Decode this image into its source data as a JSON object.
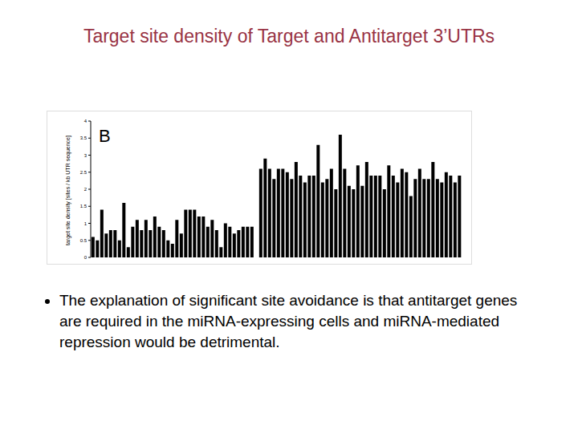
{
  "slide": {
    "title": "Target site density of Target and Antitarget 3’UTRs",
    "bullets": [
      "The explanation of significant site avoidance is that antitarget genes are required in the miRNA-expressing cells and miRNA-mediated repression would be detrimental."
    ]
  },
  "chart_data": {
    "type": "bar",
    "annotations": [
      "B"
    ],
    "y_label": "target site density [sites / kb UTR sequence]",
    "categories": [
      null,
      null,
      null,
      null,
      null,
      null,
      null,
      null,
      null,
      null,
      null,
      null,
      null,
      null,
      null,
      null,
      null,
      null,
      null,
      null,
      null,
      null,
      null,
      null,
      null,
      null,
      null,
      null,
      null,
      null,
      null,
      null,
      null,
      null,
      null,
      null,
      null,
      null,
      null,
      null,
      null,
      null,
      null,
      null,
      null,
      null,
      null,
      null,
      null,
      null,
      null,
      null,
      null,
      null,
      null,
      null,
      null,
      null,
      null,
      null,
      null,
      null,
      null,
      null,
      null,
      null,
      null,
      null,
      null,
      null,
      null,
      null,
      null,
      null,
      null,
      null,
      null,
      null,
      null,
      null,
      null,
      null,
      null,
      null
    ],
    "values": [
      0.6,
      0.5,
      1.4,
      0.7,
      0.8,
      0.8,
      0.5,
      1.6,
      0.3,
      0.9,
      1.1,
      0.8,
      1.1,
      0.8,
      1.2,
      0.9,
      0.8,
      0.5,
      0.4,
      1.1,
      0.7,
      1.4,
      1.4,
      1.4,
      1.2,
      1.2,
      0.9,
      1.1,
      0.8,
      0.3,
      1.0,
      0.9,
      0.7,
      0.8,
      0.9,
      0.9,
      0.9,
      null,
      2.6,
      2.9,
      2.6,
      2.3,
      2.6,
      2.6,
      2.5,
      2.3,
      2.8,
      2.4,
      2.2,
      2.4,
      2.4,
      3.3,
      2.2,
      2.3,
      2.6,
      2.0,
      3.6,
      2.6,
      2.1,
      2.0,
      2.7,
      2.1,
      2.8,
      2.4,
      2.4,
      2.4,
      2.0,
      2.7,
      2.4,
      2.2,
      2.6,
      2.5,
      1.8,
      2.3,
      2.6,
      2.3,
      2.3,
      2.8,
      2.3,
      2.2,
      2.5,
      2.4,
      2.2,
      2.4
    ],
    "color": "#000000",
    "ylim": [
      0,
      4
    ],
    "yticks": [
      0,
      0.5,
      1,
      1.5,
      2,
      2.5,
      3,
      3.5,
      4
    ],
    "tick_labels": "y"
  }
}
